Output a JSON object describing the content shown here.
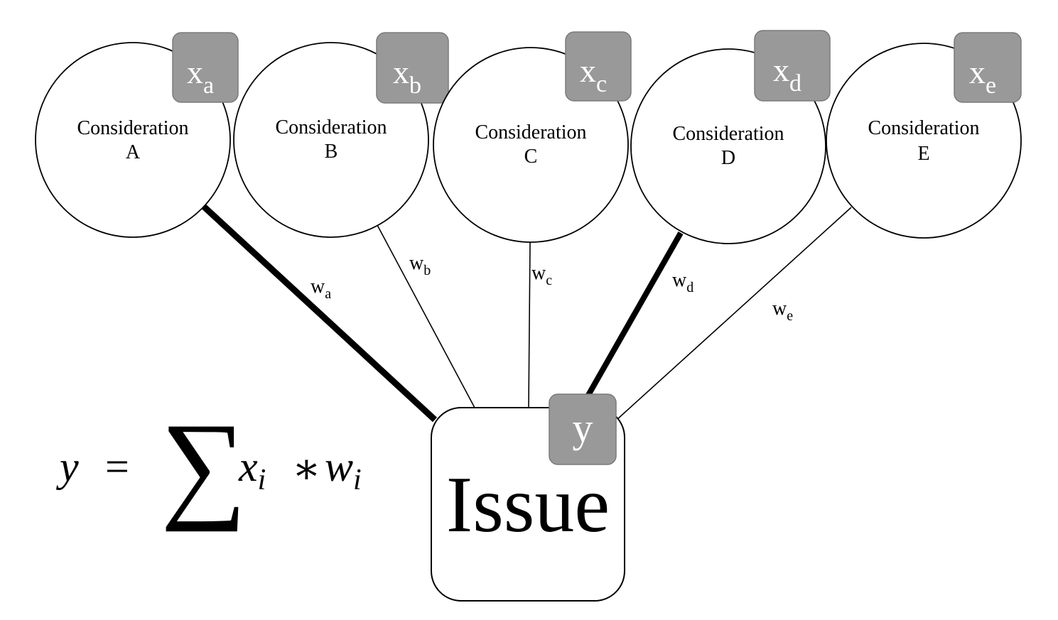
{
  "diagram": {
    "considerations": [
      {
        "label_line1": "Consideration",
        "label_line2": "A",
        "var_base": "x",
        "var_sub": "a",
        "weight_base": "w",
        "weight_sub": "a",
        "edge_strength": "strong"
      },
      {
        "label_line1": "Consideration",
        "label_line2": "B",
        "var_base": "x",
        "var_sub": "b",
        "weight_base": "w",
        "weight_sub": "b",
        "edge_strength": "weak"
      },
      {
        "label_line1": "Consideration",
        "label_line2": "C",
        "var_base": "x",
        "var_sub": "c",
        "weight_base": "w",
        "weight_sub": "c",
        "edge_strength": "weak"
      },
      {
        "label_line1": "Consideration",
        "label_line2": "D",
        "var_base": "x",
        "var_sub": "d",
        "weight_base": "w",
        "weight_sub": "d",
        "edge_strength": "strong"
      },
      {
        "label_line1": "Consideration",
        "label_line2": "E",
        "var_base": "x",
        "var_sub": "e",
        "weight_base": "w",
        "weight_sub": "e",
        "edge_strength": "weak"
      }
    ],
    "issue": {
      "label": "Issue",
      "output_var": "y"
    },
    "formula": {
      "lhs": "y",
      "equals": "=",
      "sum_symbol": "∑",
      "term_x": "x",
      "term_x_sub": "i",
      "times": "∗",
      "term_w": "w",
      "term_w_sub": "i"
    },
    "colors": {
      "badge_fill": "#999999",
      "badge_stroke": "#7a7a7a",
      "line": "#000000",
      "node_fill": "#ffffff"
    }
  }
}
